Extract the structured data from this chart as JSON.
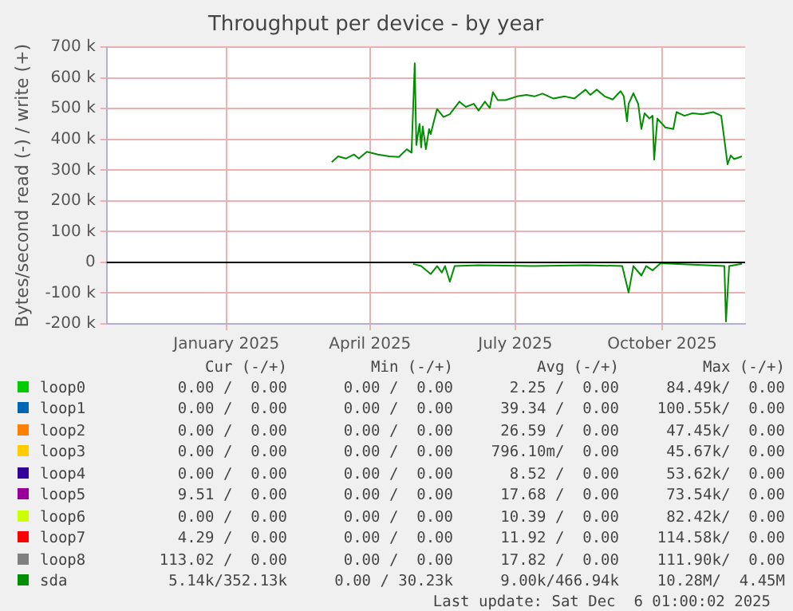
{
  "chart_data": {
    "type": "line",
    "title": "Throughput per device - by year",
    "ylabel": "Bytes/second read (-) / write (+)",
    "xlim": [
      "2024-11-01",
      "2025-12-06"
    ],
    "xticks": [
      {
        "value": "2025-01-15",
        "label": "January 2025"
      },
      {
        "value": "2025-04-15",
        "label": "April 2025"
      },
      {
        "value": "2025-07-15",
        "label": "July 2025"
      },
      {
        "value": "2025-10-15",
        "label": "October 2025"
      }
    ],
    "ylim": [
      -200000,
      700000
    ],
    "yticks": [
      {
        "value": -200000,
        "label": "-200 k"
      },
      {
        "value": -100000,
        "label": "-100 k"
      },
      0,
      {
        "value": 100000,
        "label": "100 k"
      },
      {
        "value": 200000,
        "label": "200 k"
      },
      {
        "value": 300000,
        "label": "300 k"
      },
      {
        "value": 400000,
        "label": "400 k"
      },
      {
        "value": 500000,
        "label": "500 k"
      },
      {
        "value": 600000,
        "label": "600 k"
      },
      {
        "value": 700000,
        "label": "700 k"
      }
    ],
    "grid": true,
    "legend": "bottom",
    "ref_lines": [
      {
        "axis": "y",
        "value": 0,
        "color": "#000000"
      }
    ],
    "marker": "none",
    "line_style": "solid",
    "series": [
      {
        "name": "loop0",
        "color": "#00cc00"
      },
      {
        "name": "loop1",
        "color": "#0066b3"
      },
      {
        "name": "loop2",
        "color": "#ff8000"
      },
      {
        "name": "loop3",
        "color": "#ffcc00"
      },
      {
        "name": "loop4",
        "color": "#330099"
      },
      {
        "name": "loop5",
        "color": "#990099"
      },
      {
        "name": "loop6",
        "color": "#ccff00"
      },
      {
        "name": "loop7",
        "color": "#ff0000"
      },
      {
        "name": "loop8",
        "color": "#808080"
      },
      {
        "name": "sda",
        "color": "#008f00",
        "x": [
          "2025-03-22",
          "2025-03-26",
          "2025-03-31",
          "2025-04-05",
          "2025-04-08",
          "2025-04-13",
          "2025-04-20",
          "2025-04-27",
          "2025-05-03",
          "2025-05-08",
          "2025-05-11",
          "2025-05-13",
          "2025-05-14",
          "2025-05-16",
          "2025-05-17",
          "2025-05-18",
          "2025-05-20",
          "2025-05-22",
          "2025-05-23",
          "2025-05-25",
          "2025-05-27",
          "2025-05-31",
          "2025-06-04",
          "2025-06-10",
          "2025-06-14",
          "2025-06-19",
          "2025-06-22",
          "2025-06-26",
          "2025-06-29",
          "2025-07-01",
          "2025-07-04",
          "2025-07-09",
          "2025-07-16",
          "2025-07-22",
          "2025-07-27",
          "2025-08-01",
          "2025-08-08",
          "2025-08-15",
          "2025-08-21",
          "2025-08-28",
          "2025-08-31",
          "2025-09-04",
          "2025-09-09",
          "2025-09-14",
          "2025-09-19",
          "2025-09-21",
          "2025-09-23",
          "2025-09-24",
          "2025-09-27",
          "2025-09-30",
          "2025-10-02",
          "2025-10-04",
          "2025-10-07",
          "2025-10-09",
          "2025-10-10",
          "2025-10-12",
          "2025-10-17",
          "2025-10-22",
          "2025-10-24",
          "2025-10-29",
          "2025-11-03",
          "2025-11-09",
          "2025-11-16",
          "2025-11-21",
          "2025-11-23",
          "2025-11-25",
          "2025-11-27",
          "2025-11-29",
          "2025-12-04"
        ],
        "values": [
          326000,
          345000,
          338000,
          351000,
          338000,
          360000,
          351000,
          345000,
          343000,
          368000,
          357000,
          648000,
          382000,
          451000,
          374000,
          442000,
          368000,
          434000,
          417000,
          459000,
          499000,
          473000,
          482000,
          523000,
          506000,
          516000,
          494000,
          523000,
          502000,
          554000,
          528000,
          528000,
          540000,
          545000,
          540000,
          549000,
          533000,
          540000,
          533000,
          562000,
          545000,
          562000,
          540000,
          530000,
          557000,
          540000,
          459000,
          516000,
          550000,
          516000,
          434000,
          485000,
          468000,
          477000,
          334000,
          468000,
          439000,
          434000,
          489000,
          477000,
          485000,
          482000,
          489000,
          477000,
          399000,
          319000,
          348000,
          336000,
          345000
        ]
      },
      {
        "color": "#008f00",
        "x": [
          "2025-05-12",
          "2025-05-17",
          "2025-05-23",
          "2025-05-27",
          "2025-05-30",
          "2025-06-01",
          "2025-06-04",
          "2025-06-07",
          "2025-06-22",
          "2025-07-26",
          "2025-08-28",
          "2025-09-20",
          "2025-09-24",
          "2025-09-27",
          "2025-10-02",
          "2025-10-05",
          "2025-10-09",
          "2025-10-14",
          "2025-11-03",
          "2025-11-23",
          "2025-11-24",
          "2025-11-26",
          "2025-12-04"
        ],
        "values": [
          -5000,
          -12000,
          -38000,
          -12000,
          -33000,
          -12000,
          -63000,
          -12000,
          -9000,
          -12000,
          -9000,
          -12000,
          -98000,
          -12000,
          -43000,
          -12000,
          -26000,
          -3000,
          -7000,
          -12000,
          -192000,
          -12000,
          -5000
        ]
      }
    ],
    "annotations": [
      "Cur (-/+)",
      "Min (-/+)",
      "Avg (-/+)",
      "Max (-/+)",
      "0.00 /  0.00",
      "0.00 /  0.00",
      "2.25 /  0.00",
      "84.49k/  0.00",
      "0.00 /  0.00",
      "0.00 /  0.00",
      "39.34 /  0.00",
      "100.55k/  0.00",
      "0.00 /  0.00",
      "0.00 /  0.00",
      "26.59 /  0.00",
      "47.45k/  0.00",
      "0.00 /  0.00",
      "0.00 /  0.00",
      "796.10m/  0.00",
      "45.67k/  0.00",
      "0.00 /  0.00",
      "0.00 /  0.00",
      "8.52 /  0.00",
      "53.62k/  0.00",
      "9.51 /  0.00",
      "0.00 /  0.00",
      "17.68 /  0.00",
      "73.54k/  0.00",
      "0.00 /  0.00",
      "0.00 /  0.00",
      "10.39 /  0.00",
      "82.42k/  0.00",
      "4.29 /  0.00",
      "0.00 /  0.00",
      "11.92 /  0.00",
      "114.58k/  0.00",
      "113.02 /  0.00",
      "0.00 /  0.00",
      "17.82 /  0.00",
      "111.90k/  0.00",
      "5.14k/352.13k",
      "0.00 / 30.23k",
      "9.00k/466.94k",
      "10.28M/  4.45M",
      "Last update: Sat Dec  6 01:00:02 2025"
    ]
  }
}
